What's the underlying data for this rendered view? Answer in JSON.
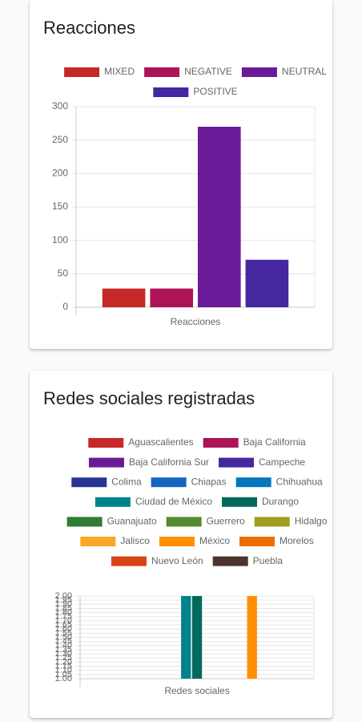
{
  "chart_data": [
    {
      "type": "bar",
      "title": "Reacciones",
      "categories": [
        "Reacciones"
      ],
      "series": [
        {
          "name": "MIXED",
          "color": "#c62828",
          "values": [
            28
          ]
        },
        {
          "name": "NEGATIVE",
          "color": "#ad1457",
          "values": [
            28
          ]
        },
        {
          "name": "NEUTRAL",
          "color": "#6a1b9a",
          "values": [
            270
          ]
        },
        {
          "name": "POSITIVE",
          "color": "#4527a0",
          "values": [
            71
          ]
        }
      ],
      "ylim": [
        0,
        300
      ],
      "yticks": [
        0,
        50,
        100,
        150,
        200,
        250,
        300
      ],
      "grid": true
    },
    {
      "type": "bar",
      "title": "Redes sociales registradas",
      "categories": [
        "Redes sociales"
      ],
      "series": [
        {
          "name": "Aguascalientes",
          "color": "#c62828",
          "values": [
            1
          ]
        },
        {
          "name": "Baja California",
          "color": "#ad1457",
          "values": [
            1
          ]
        },
        {
          "name": "Baja California Sur",
          "color": "#6a1b9a",
          "values": [
            1
          ]
        },
        {
          "name": "Campeche",
          "color": "#4527a0",
          "values": [
            1
          ]
        },
        {
          "name": "Colima",
          "color": "#283593",
          "values": [
            1
          ]
        },
        {
          "name": "Chiapas",
          "color": "#1565c0",
          "values": [
            1
          ]
        },
        {
          "name": "Chihuahua",
          "color": "#0277bd",
          "values": [
            1
          ]
        },
        {
          "name": "Ciudad de México",
          "color": "#00838f",
          "values": [
            2
          ]
        },
        {
          "name": "Durango",
          "color": "#00695c",
          "values": [
            2
          ]
        },
        {
          "name": "Guanajuato",
          "color": "#2e7d32",
          "values": [
            1
          ]
        },
        {
          "name": "Guerrero",
          "color": "#558b2f",
          "values": [
            1
          ]
        },
        {
          "name": "Hidalgo",
          "color": "#9e9d24",
          "values": [
            1
          ]
        },
        {
          "name": "Jalisco",
          "color": "#f9a825",
          "values": [
            1
          ]
        },
        {
          "name": "México",
          "color": "#ff8f00",
          "values": [
            2
          ]
        },
        {
          "name": "Morelos",
          "color": "#ef6c00",
          "values": [
            1
          ]
        },
        {
          "name": "Nuevo León",
          "color": "#d84315",
          "values": [
            1
          ]
        },
        {
          "name": "Puebla",
          "color": "#4e342e",
          "values": [
            1
          ]
        }
      ],
      "ylim": [
        1,
        2
      ],
      "yticks": [
        {
          "value": 1,
          "label": "1.00"
        },
        {
          "value": 1.05,
          "label": "1.05"
        },
        {
          "value": 1.1,
          "label": "1.10"
        },
        {
          "value": 1.15,
          "label": "1.15"
        },
        {
          "value": 1.2,
          "label": "1.20"
        },
        {
          "value": 1.25,
          "label": "1.25"
        },
        {
          "value": 1.3,
          "label": "1.30"
        },
        {
          "value": 1.35,
          "label": "1.35"
        },
        {
          "value": 1.4,
          "label": "1.40"
        },
        {
          "value": 1.45,
          "label": "1.45"
        },
        {
          "value": 1.5,
          "label": "1.50"
        },
        {
          "value": 1.55,
          "label": "1.55"
        },
        {
          "value": 1.6,
          "label": "1.60"
        },
        {
          "value": 1.65,
          "label": "1.65"
        },
        {
          "value": 1.7,
          "label": "1.70"
        },
        {
          "value": 1.75,
          "label": "1.75"
        },
        {
          "value": 1.8,
          "label": "1.80"
        },
        {
          "value": 1.85,
          "label": "1.85"
        },
        {
          "value": 1.9,
          "label": "1.90"
        },
        {
          "value": 1.95,
          "label": "1.95"
        },
        {
          "value": 2,
          "label": "2.00"
        }
      ],
      "grid": true
    }
  ]
}
